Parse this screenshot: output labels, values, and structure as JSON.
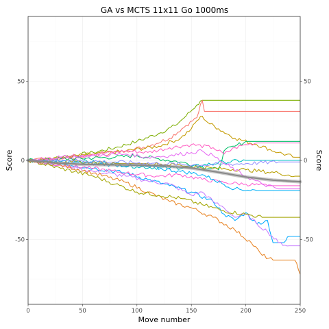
{
  "chart_data": {
    "type": "line",
    "title": "GA vs MCTS 11x11 Go 1000ms",
    "xlabel": "Move number",
    "ylabel_left": "Score",
    "ylabel_right": "Score",
    "xlim": [
      0,
      250
    ],
    "ylim": [
      -91,
      91
    ],
    "x_ticks": [
      "0",
      "50",
      "100",
      "150",
      "200",
      "250"
    ],
    "y_ticks": [
      "50",
      "0",
      "-50"
    ],
    "y_tick_values": [
      50,
      0,
      -50
    ],
    "x_tick_values": [
      0,
      50,
      100,
      150,
      200,
      250
    ],
    "grid": true,
    "legend": "none",
    "series": [
      {
        "color": "#7CAE00",
        "points": [
          [
            0,
            0
          ],
          [
            20,
            1
          ],
          [
            40,
            3
          ],
          [
            60,
            5
          ],
          [
            80,
            8
          ],
          [
            100,
            12
          ],
          [
            120,
            17
          ],
          [
            135,
            22
          ],
          [
            145,
            28
          ],
          [
            155,
            35
          ],
          [
            160,
            38
          ],
          [
            165,
            38
          ],
          [
            250,
            38
          ]
        ]
      },
      {
        "color": "#F8766D",
        "points": [
          [
            0,
            0
          ],
          [
            30,
            1
          ],
          [
            60,
            3
          ],
          [
            90,
            6
          ],
          [
            110,
            9
          ],
          [
            130,
            14
          ],
          [
            145,
            22
          ],
          [
            155,
            27
          ],
          [
            160,
            38
          ],
          [
            162,
            31
          ],
          [
            250,
            31
          ]
        ]
      },
      {
        "color": "#C49A00",
        "points": [
          [
            0,
            0
          ],
          [
            30,
            2
          ],
          [
            60,
            4
          ],
          [
            90,
            6
          ],
          [
            120,
            9
          ],
          [
            140,
            14
          ],
          [
            150,
            20
          ],
          [
            155,
            25
          ],
          [
            160,
            28
          ],
          [
            165,
            24
          ],
          [
            175,
            20
          ],
          [
            190,
            14
          ],
          [
            210,
            10
          ],
          [
            230,
            5
          ],
          [
            245,
            2
          ],
          [
            250,
            2
          ]
        ]
      },
      {
        "color": "#00BE67",
        "points": [
          [
            0,
            0
          ],
          [
            40,
            1
          ],
          [
            80,
            2
          ],
          [
            100,
            3
          ],
          [
            120,
            1
          ],
          [
            140,
            -1
          ],
          [
            160,
            -4
          ],
          [
            175,
            -6
          ],
          [
            180,
            6
          ],
          [
            190,
            9
          ],
          [
            200,
            12
          ],
          [
            250,
            12
          ]
        ]
      },
      {
        "color": "#FF61C3",
        "points": [
          [
            0,
            0
          ],
          [
            30,
            2
          ],
          [
            60,
            4
          ],
          [
            90,
            6
          ],
          [
            110,
            5
          ],
          [
            130,
            8
          ],
          [
            150,
            10
          ],
          [
            170,
            8
          ],
          [
            180,
            4
          ],
          [
            190,
            8
          ],
          [
            200,
            10
          ],
          [
            210,
            11
          ],
          [
            250,
            11
          ]
        ]
      },
      {
        "color": "#00BFC4",
        "points": [
          [
            0,
            0
          ],
          [
            40,
            0
          ],
          [
            80,
            -2
          ],
          [
            100,
            -4
          ],
          [
            130,
            -5
          ],
          [
            150,
            -4
          ],
          [
            180,
            -1
          ],
          [
            200,
            0
          ],
          [
            250,
            0
          ]
        ]
      },
      {
        "color": "#00A9FF",
        "points": [
          [
            0,
            0
          ],
          [
            30,
            -2
          ],
          [
            60,
            -5
          ],
          [
            90,
            -8
          ],
          [
            110,
            -12
          ],
          [
            130,
            -16
          ],
          [
            150,
            -20
          ],
          [
            170,
            -26
          ],
          [
            180,
            -34
          ],
          [
            190,
            -38
          ],
          [
            200,
            -33
          ],
          [
            210,
            -40
          ],
          [
            220,
            -38
          ],
          [
            225,
            -52
          ],
          [
            235,
            -52
          ],
          [
            240,
            -48
          ],
          [
            250,
            -48
          ]
        ]
      },
      {
        "color": "#C77CFF",
        "points": [
          [
            0,
            0
          ],
          [
            30,
            -3
          ],
          [
            60,
            -7
          ],
          [
            90,
            -10
          ],
          [
            110,
            -13
          ],
          [
            130,
            -15
          ],
          [
            150,
            -22
          ],
          [
            160,
            -20
          ],
          [
            170,
            -26
          ],
          [
            180,
            -30
          ],
          [
            190,
            -36
          ],
          [
            200,
            -34
          ],
          [
            210,
            -40
          ],
          [
            220,
            -45
          ],
          [
            230,
            -52
          ],
          [
            240,
            -54
          ],
          [
            250,
            -54
          ]
        ]
      },
      {
        "color": "#FD61D1",
        "points": [
          [
            0,
            0
          ],
          [
            30,
            -3
          ],
          [
            60,
            -5
          ],
          [
            90,
            -8
          ],
          [
            120,
            -10
          ],
          [
            140,
            -9
          ],
          [
            160,
            -12
          ],
          [
            180,
            -14
          ],
          [
            200,
            -15
          ],
          [
            220,
            -16
          ],
          [
            250,
            -16
          ]
        ]
      },
      {
        "color": "#E88526",
        "points": [
          [
            0,
            0
          ],
          [
            30,
            -3
          ],
          [
            60,
            -8
          ],
          [
            90,
            -14
          ],
          [
            110,
            -20
          ],
          [
            130,
            -26
          ],
          [
            150,
            -30
          ],
          [
            170,
            -36
          ],
          [
            190,
            -44
          ],
          [
            205,
            -52
          ],
          [
            215,
            -60
          ],
          [
            225,
            -63
          ],
          [
            235,
            -63
          ],
          [
            245,
            -63
          ],
          [
            250,
            -72
          ]
        ]
      },
      {
        "color": "#A3A500",
        "points": [
          [
            0,
            0
          ],
          [
            30,
            -5
          ],
          [
            60,
            -10
          ],
          [
            80,
            -15
          ],
          [
            100,
            -20
          ],
          [
            120,
            -22
          ],
          [
            140,
            -24
          ],
          [
            160,
            -28
          ],
          [
            180,
            -32
          ],
          [
            200,
            -34
          ],
          [
            215,
            -36
          ],
          [
            250,
            -36
          ]
        ]
      },
      {
        "color": "#00B0F6",
        "points": [
          [
            0,
            0
          ],
          [
            40,
            -1
          ],
          [
            80,
            -3
          ],
          [
            110,
            -4
          ],
          [
            140,
            -7
          ],
          [
            160,
            -9
          ],
          [
            170,
            -12
          ],
          [
            190,
            -18
          ],
          [
            210,
            -19
          ],
          [
            230,
            -19
          ],
          [
            250,
            -19
          ]
        ]
      },
      {
        "color": "#B79F00",
        "points": [
          [
            0,
            0
          ],
          [
            40,
            -1
          ],
          [
            80,
            -2
          ],
          [
            110,
            -2
          ],
          [
            140,
            -3
          ],
          [
            170,
            -5
          ],
          [
            200,
            -6
          ],
          [
            230,
            -8
          ],
          [
            245,
            -10
          ],
          [
            250,
            -10
          ]
        ]
      },
      {
        "color": "#9590FF",
        "points": [
          [
            0,
            0
          ],
          [
            40,
            0
          ],
          [
            80,
            -1
          ],
          [
            120,
            -2
          ],
          [
            160,
            -3
          ],
          [
            200,
            -2
          ],
          [
            230,
            -1
          ],
          [
            250,
            -1
          ]
        ]
      },
      {
        "color": "#E76BF3",
        "points": [
          [
            0,
            0
          ],
          [
            30,
            2
          ],
          [
            60,
            3
          ],
          [
            90,
            4
          ],
          [
            110,
            2
          ],
          [
            130,
            3
          ],
          [
            150,
            5
          ],
          [
            160,
            6
          ],
          [
            170,
            3
          ],
          [
            180,
            -2
          ],
          [
            200,
            -10
          ],
          [
            215,
            -15
          ],
          [
            230,
            -18
          ],
          [
            250,
            -18
          ]
        ]
      }
    ],
    "smooth": {
      "color": "#888888",
      "points": [
        [
          0,
          0
        ],
        [
          25,
          -1.5
        ],
        [
          50,
          -2.5
        ],
        [
          75,
          -2.8
        ],
        [
          100,
          -3
        ],
        [
          125,
          -3.5
        ],
        [
          150,
          -4.8
        ],
        [
          175,
          -7.5
        ],
        [
          200,
          -10.5
        ],
        [
          225,
          -12.5
        ],
        [
          250,
          -13.5
        ]
      ]
    }
  }
}
